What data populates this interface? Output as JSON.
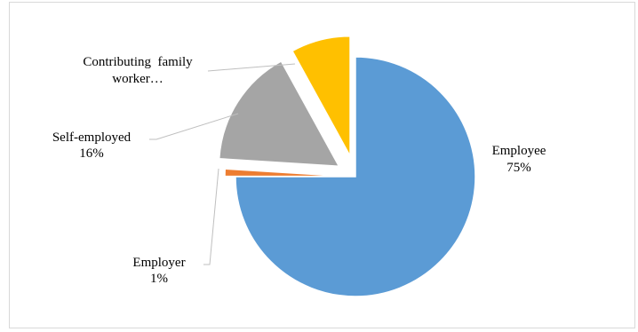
{
  "chart_data": {
    "type": "pie",
    "categories": [
      "Employee",
      "Employer",
      "Self-employed",
      "Contributing family worker"
    ],
    "values": [
      75,
      1,
      16,
      8
    ],
    "labels": [
      {
        "name": "Employee",
        "value": "75%"
      },
      {
        "name": "Employer",
        "value": "1%"
      },
      {
        "name": "Self-employed",
        "value": "16%"
      },
      {
        "name": "Contributing  family",
        "name2": "worker…",
        "value": ""
      }
    ],
    "colors": [
      "#5b9bd5",
      "#ed7d31",
      "#a5a5a5",
      "#ffc000"
    ],
    "exploded": true,
    "legend": "none"
  }
}
